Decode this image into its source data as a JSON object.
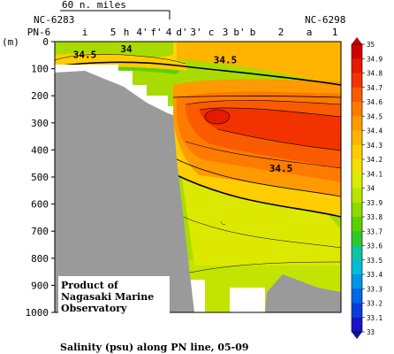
{
  "chart_data": {
    "type": "heatmap",
    "title": "Salinity (psu) along PN line, 05-09",
    "credit": [
      "Product of",
      "Nagasaki Marine",
      "Observatory"
    ],
    "ylabel": "(m)",
    "y_axis": {
      "range": [
        0,
        1000
      ],
      "inverted": true,
      "ticks": [
        0,
        100,
        200,
        300,
        400,
        500,
        600,
        700,
        800,
        900,
        1000
      ]
    },
    "scale_bar": "60 n. miles",
    "end_stations": {
      "left": "NC-6283",
      "right": "NC-6298"
    },
    "stations": [
      "PN-6",
      "i",
      "5",
      "h",
      "4'",
      "f'",
      "4",
      "d'",
      "3'",
      "c",
      "3",
      "b'",
      "b",
      "2",
      "a",
      "1"
    ],
    "contour_labels": [
      {
        "text": "34.5",
        "near_station": "i",
        "depth_m": 50
      },
      {
        "text": "34",
        "near_station": "h",
        "depth_m": 30
      },
      {
        "text": "34.5",
        "near_station": "3",
        "depth_m": 70
      },
      {
        "text": "34.5",
        "near_station": "2",
        "depth_m": 470
      }
    ],
    "colorbar": {
      "unit": "psu",
      "ticks": [
        35,
        34.9,
        34.8,
        34.7,
        34.6,
        34.5,
        34.4,
        34.3,
        34.2,
        34.1,
        34,
        33.9,
        33.8,
        33.7,
        33.6,
        33.5,
        33.4,
        33.3,
        33.2,
        33.1,
        33
      ],
      "colors": [
        "#d10000",
        "#e61a00",
        "#f23300",
        "#fa5a00",
        "#ff7a00",
        "#ff9a00",
        "#ffb400",
        "#ffcd00",
        "#f0e100",
        "#d8ee00",
        "#b8e600",
        "#8fd800",
        "#5ecf00",
        "#2ec82a",
        "#12c2a0",
        "#00bcd8",
        "#0096e6",
        "#0066e6",
        "#0a3cdc",
        "#1a14c8"
      ]
    }
  }
}
